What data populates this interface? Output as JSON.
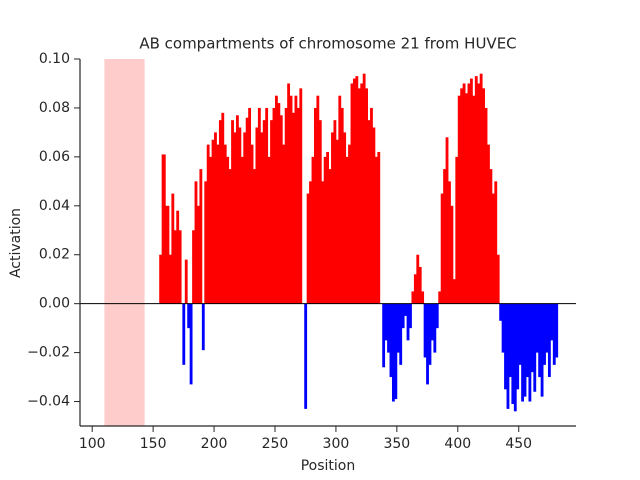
{
  "chart_data": {
    "type": "area_sign",
    "title": "AB compartments of chromosome 21 from HUVEC",
    "x_label": "Position",
    "y_label": "Activation",
    "pos_color": "#ff0000",
    "neg_color": "#0000ff",
    "highlight_color": "#ffcccc",
    "highlight": [
      110,
      143
    ],
    "hline": 0,
    "xlim": [
      90,
      497
    ],
    "ylim": [
      -0.05,
      0.1
    ],
    "xticks": [
      100,
      150,
      200,
      250,
      300,
      350,
      400,
      450
    ],
    "yticks": [
      {
        "value": 0.1,
        "label": "0.10"
      },
      {
        "value": 0.08,
        "label": "0.08"
      },
      {
        "value": 0.06,
        "label": "0.06"
      },
      {
        "value": 0.04,
        "label": "0.04"
      },
      {
        "value": 0.02,
        "label": "0.02"
      },
      {
        "value": 0,
        "label": "0.00"
      },
      {
        "value": -0.02,
        "label": "−0.02"
      },
      {
        "value": -0.04,
        "label": "−0.04"
      }
    ],
    "x": [
      155,
      157,
      160,
      163,
      165,
      167,
      169,
      171,
      173,
      174,
      176,
      178,
      180,
      182,
      184,
      186,
      188,
      190,
      192,
      194,
      196,
      198,
      200,
      202,
      204,
      206,
      208,
      210,
      212,
      214,
      216,
      218,
      220,
      222,
      224,
      226,
      228,
      230,
      232,
      234,
      236,
      238,
      240,
      242,
      244,
      246,
      248,
      250,
      252,
      254,
      256,
      258,
      260,
      262,
      264,
      266,
      268,
      270,
      272,
      274,
      276,
      278,
      280,
      282,
      284,
      286,
      288,
      290,
      292,
      294,
      296,
      298,
      300,
      302,
      304,
      306,
      308,
      310,
      312,
      314,
      316,
      318,
      320,
      322,
      324,
      326,
      328,
      330,
      332,
      334,
      336,
      338,
      340,
      342,
      344,
      346,
      348,
      350,
      352,
      354,
      356,
      358,
      360,
      362,
      364,
      366,
      368,
      370,
      372,
      374,
      376,
      378,
      380,
      382,
      384,
      386,
      388,
      390,
      392,
      394,
      396,
      398,
      400,
      402,
      404,
      406,
      408,
      410,
      412,
      414,
      416,
      418,
      420,
      422,
      424,
      426,
      428,
      430,
      432,
      434,
      436,
      438,
      440,
      442,
      444,
      446,
      448,
      450,
      452,
      454,
      456,
      458,
      460,
      462,
      464,
      466,
      468,
      470,
      472,
      474,
      476,
      478,
      480,
      482
    ],
    "values": [
      0.02,
      0.061,
      0.04,
      0.02,
      0.045,
      0.03,
      0.038,
      0.03,
      0.0,
      -0.025,
      0.018,
      -0.01,
      -0.033,
      0.03,
      0.05,
      0.04,
      0.055,
      -0.019,
      0.05,
      0.065,
      0.06,
      0.067,
      0.07,
      0.065,
      0.075,
      0.078,
      0.065,
      0.06,
      0.055,
      0.075,
      0.07,
      0.077,
      0.072,
      0.06,
      0.07,
      0.076,
      0.08,
      0.065,
      0.055,
      0.072,
      0.08,
      0.07,
      0.075,
      0.08,
      0.06,
      0.075,
      0.08,
      0.085,
      0.082,
      0.077,
      0.065,
      0.08,
      0.09,
      0.085,
      0.078,
      0.085,
      0.08,
      0.088,
      0.0,
      -0.043,
      0.045,
      0.05,
      0.06,
      0.08,
      0.085,
      0.075,
      0.05,
      0.06,
      0.062,
      0.055,
      0.07,
      0.075,
      0.067,
      0.085,
      0.08,
      0.07,
      0.06,
      0.065,
      0.09,
      0.092,
      0.093,
      0.088,
      0.09,
      0.094,
      0.088,
      0.075,
      0.08,
      0.072,
      0.06,
      0.062,
      0.0,
      -0.026,
      -0.015,
      -0.02,
      -0.03,
      -0.04,
      -0.039,
      -0.02,
      -0.025,
      -0.01,
      -0.005,
      -0.015,
      -0.01,
      0.005,
      0.012,
      0.02,
      0.015,
      0.005,
      -0.022,
      -0.033,
      -0.025,
      -0.015,
      -0.02,
      -0.01,
      0.005,
      0.045,
      0.055,
      0.068,
      0.05,
      0.04,
      0.01,
      0.06,
      0.085,
      0.088,
      0.09,
      0.086,
      0.09,
      0.092,
      0.085,
      0.093,
      0.09,
      0.094,
      0.088,
      0.08,
      0.065,
      0.055,
      0.045,
      0.05,
      0.02,
      -0.007,
      -0.02,
      -0.035,
      -0.043,
      -0.03,
      -0.041,
      -0.044,
      -0.035,
      -0.025,
      -0.04,
      -0.038,
      -0.03,
      -0.04,
      -0.028,
      -0.036,
      -0.02,
      -0.03,
      -0.038,
      -0.025,
      -0.02,
      -0.03,
      -0.015,
      -0.025,
      -0.022,
      0
    ]
  }
}
